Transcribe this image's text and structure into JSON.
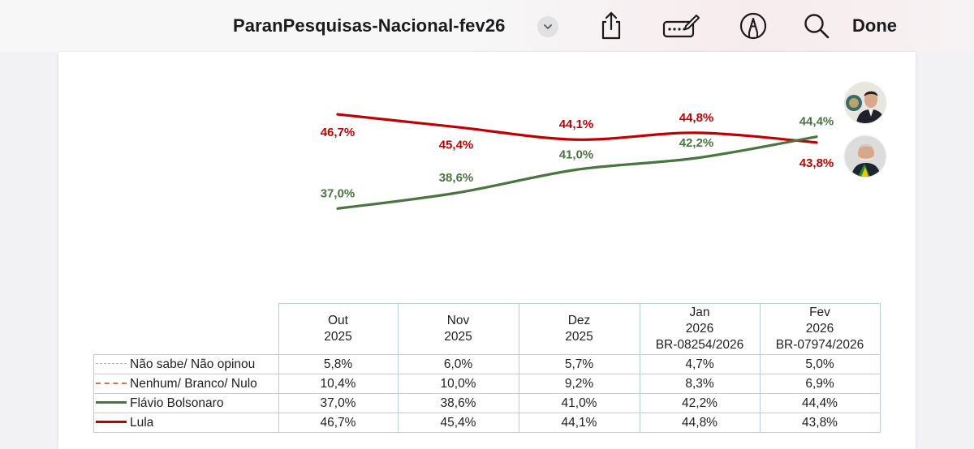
{
  "toolbar": {
    "title": "ParanPesquisas-Nacional-fev26",
    "done_label": "Done"
  },
  "icons": [
    "chevron-down-icon",
    "share-icon",
    "keyboard-pencil-icon",
    "markup-pen-icon",
    "search-icon"
  ],
  "colors": {
    "lula": "#c00000",
    "flavio": "#4a7540",
    "nao_sabe": "#a9b3b3",
    "nenhum": "#c97a4a",
    "table_border": "#b8d0cf"
  },
  "chart_data": {
    "type": "line",
    "categories": [
      "Out 2025",
      "Nov 2025",
      "Dez 2025",
      "Jan 2026",
      "Fev 2026"
    ],
    "series": [
      {
        "name": "Lula",
        "values": [
          46.7,
          45.4,
          44.1,
          44.8,
          43.8
        ],
        "labels": [
          "46,7%",
          "45,4%",
          "44,1%",
          "44,8%",
          "43,8%"
        ]
      },
      {
        "name": "Flávio Bolsonaro",
        "values": [
          37.0,
          38.6,
          41.0,
          42.2,
          44.4
        ],
        "labels": [
          "37,0%",
          "38,6%",
          "41,0%",
          "42,2%",
          "44,4%"
        ]
      }
    ],
    "legend": "table-left",
    "grid": false
  },
  "table": {
    "headers": [
      [
        "Out",
        "2025"
      ],
      [
        "Nov",
        "2025"
      ],
      [
        "Dez",
        "2025"
      ],
      [
        "Jan",
        "2026",
        "BR-08254/2026"
      ],
      [
        "Fev",
        "2026",
        "BR-07974/2026"
      ]
    ],
    "rows": [
      {
        "label": "Não sabe/ Não opinou",
        "style": "dotted",
        "values": [
          "5,8%",
          "6,0%",
          "5,7%",
          "4,7%",
          "5,0%"
        ]
      },
      {
        "label": "Nenhum/ Branco/ Nulo",
        "style": "dashed",
        "values": [
          "10,4%",
          "10,0%",
          "9,2%",
          "8,3%",
          "6,9%"
        ]
      },
      {
        "label": "Flávio Bolsonaro",
        "style": "solid-green",
        "values": [
          "37,0%",
          "38,6%",
          "41,0%",
          "42,2%",
          "44,4%"
        ]
      },
      {
        "label": "Lula",
        "style": "solid-red",
        "values": [
          "46,7%",
          "45,4%",
          "44,1%",
          "44,8%",
          "43,8%"
        ]
      }
    ]
  }
}
